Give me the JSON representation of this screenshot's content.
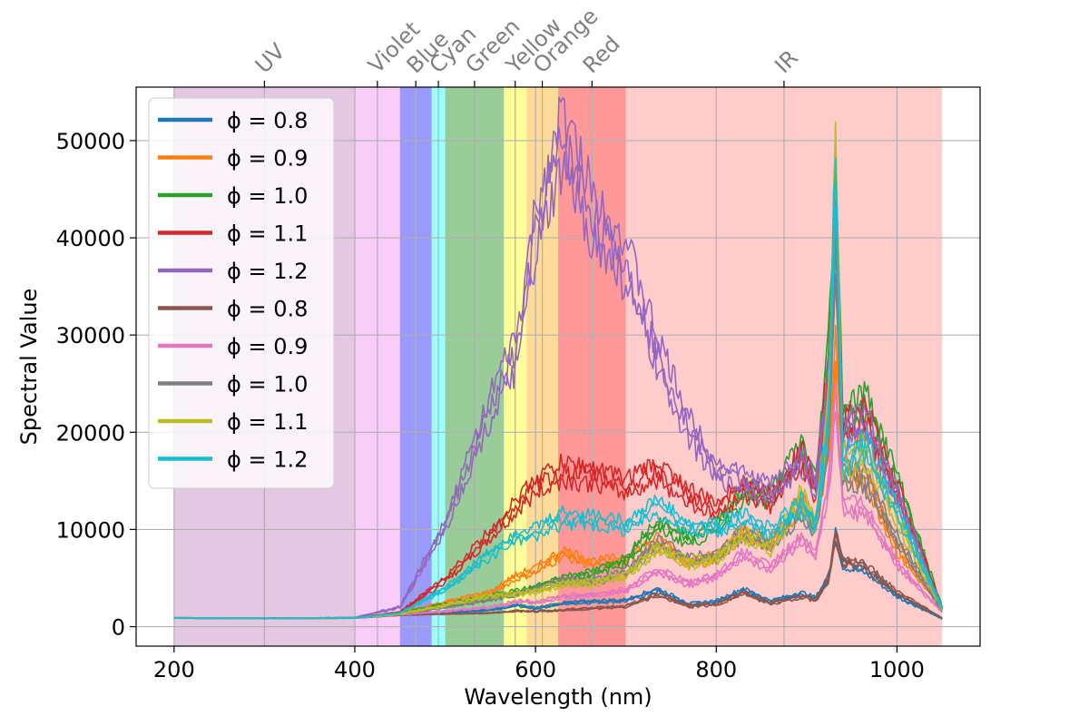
{
  "chart_data": {
    "type": "line",
    "xlabel": "Wavelength (nm)",
    "ylabel": "Spectral Value",
    "xlim": [
      158,
      1092
    ],
    "ylim": [
      -2000,
      55500
    ],
    "xticks": [
      200,
      400,
      600,
      800,
      1000
    ],
    "yticks": [
      0,
      10000,
      20000,
      30000,
      40000,
      50000
    ],
    "grid": true,
    "legend_position": "upper-left",
    "color_bands": [
      {
        "name": "UV",
        "start": 200,
        "end": 400,
        "color": "#800080",
        "alpha": 0.22
      },
      {
        "name": "Violet",
        "start": 400,
        "end": 450,
        "color": "#ee82ee",
        "alpha": 0.4
      },
      {
        "name": "Blue",
        "start": 450,
        "end": 485,
        "color": "#0000ff",
        "alpha": 0.4
      },
      {
        "name": "Cyan",
        "start": 485,
        "end": 500,
        "color": "#00ffff",
        "alpha": 0.4
      },
      {
        "name": "Green",
        "start": 500,
        "end": 565,
        "color": "#008000",
        "alpha": 0.4
      },
      {
        "name": "Yellow",
        "start": 565,
        "end": 590,
        "color": "#ffff00",
        "alpha": 0.4
      },
      {
        "name": "Orange",
        "start": 590,
        "end": 625,
        "color": "#ffa500",
        "alpha": 0.4
      },
      {
        "name": "Red",
        "start": 625,
        "end": 700,
        "color": "#ff0000",
        "alpha": 0.4
      },
      {
        "name": "IR",
        "start": 700,
        "end": 1050,
        "color": "#ff0000",
        "alpha": 0.2
      }
    ],
    "top_axis_labels": [
      {
        "label": "UV",
        "x": 300
      },
      {
        "label": "Violet",
        "x": 425
      },
      {
        "label": "Blue",
        "x": 467.5
      },
      {
        "label": "Cyan",
        "x": 492.5
      },
      {
        "label": "Green",
        "x": 532.5
      },
      {
        "label": "Yellow",
        "x": 577.5
      },
      {
        "label": "Orange",
        "x": 607.5
      },
      {
        "label": "Red",
        "x": 662.5
      },
      {
        "label": "IR",
        "x": 875
      }
    ],
    "series": [
      {
        "name": "ϕ = 0.8",
        "color": "#1f77b4",
        "x": [
          200,
          300,
          400,
          450,
          500,
          550,
          580,
          600,
          630,
          665,
          700,
          735,
          770,
          800,
          830,
          860,
          895,
          910,
          925,
          932,
          940,
          965,
          1000,
          1050
        ],
        "y": [
          900,
          850,
          900,
          1200,
          1450,
          1700,
          2200,
          1900,
          2400,
          2600,
          2700,
          3800,
          2300,
          2600,
          3800,
          2600,
          3400,
          2900,
          5200,
          9800,
          6500,
          5800,
          3200,
          800
        ]
      },
      {
        "name": "ϕ = 0.9",
        "color": "#ff7f0e",
        "x": [
          200,
          300,
          400,
          450,
          500,
          550,
          580,
          600,
          630,
          665,
          700,
          735,
          770,
          800,
          830,
          860,
          895,
          910,
          925,
          932,
          940,
          965,
          1000,
          1050
        ],
        "y": [
          900,
          850,
          900,
          1400,
          2500,
          3500,
          5200,
          5800,
          7600,
          6500,
          6900,
          8800,
          6600,
          7100,
          9800,
          8400,
          13000,
          10600,
          19000,
          28000,
          16000,
          15500,
          8000,
          1800
        ]
      },
      {
        "name": "ϕ = 1.0",
        "color": "#2ca02c",
        "x": [
          200,
          300,
          400,
          450,
          500,
          550,
          580,
          600,
          630,
          665,
          700,
          735,
          770,
          800,
          830,
          860,
          895,
          910,
          925,
          932,
          940,
          965,
          1000,
          1050
        ],
        "y": [
          900,
          850,
          900,
          1400,
          2300,
          3100,
          3600,
          4000,
          5000,
          5500,
          6900,
          10700,
          8900,
          10300,
          13900,
          13200,
          18300,
          14500,
          29000,
          46000,
          21500,
          23000,
          15000,
          2000
        ]
      },
      {
        "name": "ϕ = 1.1",
        "color": "#d62728",
        "x": [
          200,
          300,
          400,
          450,
          500,
          550,
          580,
          600,
          630,
          665,
          700,
          735,
          770,
          800,
          830,
          860,
          895,
          910,
          925,
          932,
          940,
          965,
          1000,
          1050
        ],
        "y": [
          900,
          850,
          900,
          1500,
          4800,
          9500,
          12500,
          14500,
          16000,
          15500,
          14500,
          16000,
          13500,
          12000,
          14500,
          13000,
          17500,
          14000,
          27000,
          43000,
          20500,
          21500,
          14000,
          1900
        ]
      },
      {
        "name": "ϕ = 1.2",
        "color": "#9467bd",
        "x": [
          200,
          300,
          400,
          450,
          500,
          550,
          580,
          600,
          630,
          665,
          700,
          735,
          770,
          800,
          830,
          860,
          895,
          910,
          925,
          932,
          940,
          965,
          1000,
          1050
        ],
        "y": [
          900,
          850,
          950,
          2000,
          10500,
          22500,
          28500,
          40500,
          50000,
          42000,
          37500,
          28000,
          20500,
          16000,
          15000,
          14000,
          17000,
          14500,
          26000,
          36500,
          20000,
          21000,
          13500,
          1800
        ]
      },
      {
        "name": "ϕ = 0.8",
        "color": "#8c564b",
        "x": [
          200,
          300,
          400,
          450,
          500,
          550,
          580,
          600,
          630,
          665,
          700,
          735,
          770,
          800,
          830,
          860,
          895,
          910,
          925,
          932,
          940,
          965,
          1000,
          1050
        ],
        "y": [
          900,
          850,
          900,
          1200,
          1300,
          1400,
          1600,
          1600,
          1700,
          1900,
          2100,
          3300,
          2100,
          2300,
          3500,
          2400,
          3100,
          2700,
          5000,
          9500,
          6800,
          6200,
          3500,
          900
        ]
      },
      {
        "name": "ϕ = 0.9",
        "color": "#e377c2",
        "x": [
          200,
          300,
          400,
          450,
          500,
          550,
          580,
          600,
          630,
          665,
          700,
          735,
          770,
          800,
          830,
          860,
          895,
          910,
          925,
          932,
          940,
          965,
          1000,
          1050
        ],
        "y": [
          900,
          850,
          900,
          1250,
          1600,
          2000,
          2600,
          2500,
          3100,
          3300,
          3700,
          5800,
          4400,
          5200,
          7400,
          6000,
          9100,
          7300,
          15000,
          24000,
          12500,
          12000,
          6500,
          1500
        ]
      },
      {
        "name": "ϕ = 1.0",
        "color": "#7f7f7f",
        "x": [
          200,
          300,
          400,
          450,
          500,
          550,
          580,
          600,
          630,
          665,
          700,
          735,
          770,
          800,
          830,
          860,
          895,
          910,
          925,
          932,
          940,
          965,
          1000,
          1050
        ],
        "y": [
          900,
          850,
          900,
          1300,
          2000,
          2800,
          3400,
          3900,
          4700,
          4600,
          5600,
          8600,
          6900,
          7300,
          9700,
          8500,
          12000,
          9800,
          21000,
          38500,
          15500,
          15000,
          9000,
          1700
        ]
      },
      {
        "name": "ϕ = 1.1",
        "color": "#bcbd22",
        "x": [
          200,
          300,
          400,
          450,
          500,
          550,
          580,
          600,
          630,
          665,
          700,
          735,
          770,
          800,
          830,
          860,
          895,
          910,
          925,
          932,
          940,
          965,
          1000,
          1050
        ],
        "y": [
          900,
          850,
          900,
          1300,
          2200,
          3200,
          3400,
          3600,
          4400,
          4500,
          5300,
          8000,
          6500,
          7000,
          9400,
          8000,
          13500,
          10500,
          24000,
          50000,
          17000,
          18000,
          11000,
          1800
        ]
      },
      {
        "name": "ϕ = 1.2",
        "color": "#17becf",
        "x": [
          200,
          300,
          400,
          450,
          500,
          550,
          580,
          600,
          630,
          665,
          700,
          735,
          770,
          800,
          830,
          860,
          895,
          910,
          925,
          932,
          940,
          965,
          1000,
          1050
        ],
        "y": [
          900,
          850,
          900,
          1400,
          3900,
          7500,
          9400,
          9700,
          11200,
          11000,
          10400,
          12500,
          10000,
          10200,
          11200,
          9800,
          12600,
          10300,
          22000,
          47000,
          17000,
          18500,
          12000,
          1900
        ]
      }
    ]
  }
}
